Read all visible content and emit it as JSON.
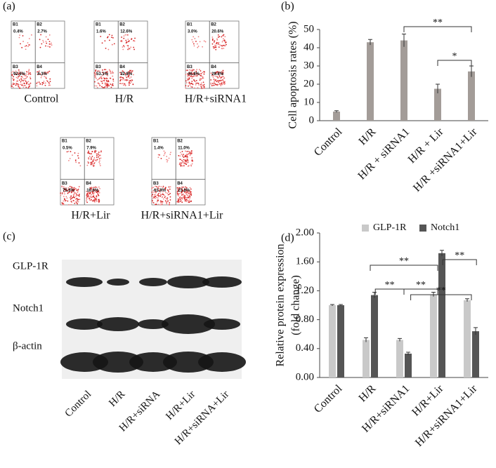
{
  "figure_a": {
    "label": "(a)",
    "plots": [
      {
        "title": "Control",
        "quadrants": [
          [
            "B1",
            "0.4%"
          ],
          [
            "B2",
            "2.7%"
          ],
          [
            "B3",
            "92.6%"
          ],
          [
            "B4",
            "4.3%"
          ]
        ]
      },
      {
        "title": "H/R",
        "quadrants": [
          [
            "B1",
            "1.6%"
          ],
          [
            "B2",
            "12.6%"
          ],
          [
            "B3",
            "53.1%"
          ],
          [
            "B4",
            "32.8%"
          ]
        ]
      },
      {
        "title": "H/R+siRNA1",
        "quadrants": [
          [
            "B1",
            "3.0%"
          ],
          [
            "B2",
            "20.6%"
          ],
          [
            "B3",
            "46.8%"
          ],
          [
            "B4",
            "29.6%"
          ]
        ]
      },
      {
        "title": "H/R+Lir",
        "quadrants": [
          [
            "B1",
            "0.5%"
          ],
          [
            "B2",
            "7.9%"
          ],
          [
            "B3",
            "75.6%"
          ],
          [
            "B4",
            "16.6%"
          ]
        ]
      },
      {
        "title": "H/R+siRNA1+Lir",
        "quadrants": [
          [
            "B1",
            "1.4%"
          ],
          [
            "B2",
            "11.0%"
          ],
          [
            "B3",
            "63.9%"
          ],
          [
            "B4",
            "23.8%"
          ]
        ]
      }
    ]
  },
  "figure_c": {
    "label": "(c)",
    "rows": [
      "GLP-1R",
      "Notch1",
      "β-actin"
    ],
    "lanes": [
      "Control",
      "H/R",
      "H/R+siRNA",
      "H/R+Lir",
      "H/R+siRNA+Lir"
    ]
  },
  "chart_data": [
    {
      "type": "bar",
      "panel_label": "(b)",
      "y_label": "Cell apoptosis rates (%)",
      "categories": [
        "Control",
        "H/R",
        "H/R + siRNA1",
        "H/R + Lir",
        "H/R +siRNA1+Lir"
      ],
      "values": [
        5,
        43,
        44,
        17.5,
        27
      ],
      "errors": [
        0.5,
        1.5,
        3.5,
        2.5,
        3
      ],
      "color": "#a39c98",
      "ylim": [
        0,
        50
      ],
      "yticks": [
        0,
        10,
        20,
        30,
        40,
        50
      ],
      "annotations": [
        "**",
        "*"
      ]
    },
    {
      "type": "grouped_bar",
      "panel_label": "(d)",
      "y_label": [
        "Relative  protein expression",
        "(fold change)"
      ],
      "categories": [
        "Control",
        "H/R",
        "H/R+siRNA1",
        "H/R+Lir",
        "H/R+siRNA1+Lir"
      ],
      "series": [
        {
          "name": "GLP-1R",
          "color": "#c9c9c9",
          "values": [
            1.0,
            0.52,
            0.52,
            1.15,
            1.07
          ],
          "errors": [
            0.01,
            0.03,
            0.02,
            0.03,
            0.02
          ]
        },
        {
          "name": "Notch1",
          "color": "#555555",
          "values": [
            1.0,
            1.14,
            0.33,
            1.72,
            0.64
          ],
          "errors": [
            0.01,
            0.04,
            0.02,
            0.04,
            0.05
          ]
        }
      ],
      "ylim": [
        0,
        2
      ],
      "yticks": [
        {
          "value": 0,
          "label": "0.00"
        },
        {
          "value": 0.4,
          "label": "0.40"
        },
        {
          "value": 0.8,
          "label": "0.80"
        },
        {
          "value": 1.2,
          "label": "1.20"
        },
        {
          "value": 1.6,
          "label": "1.60"
        },
        {
          "value": 2,
          "label": "2.00"
        }
      ],
      "annotations": [
        "**",
        "**",
        "**",
        "**",
        "**"
      ]
    }
  ]
}
